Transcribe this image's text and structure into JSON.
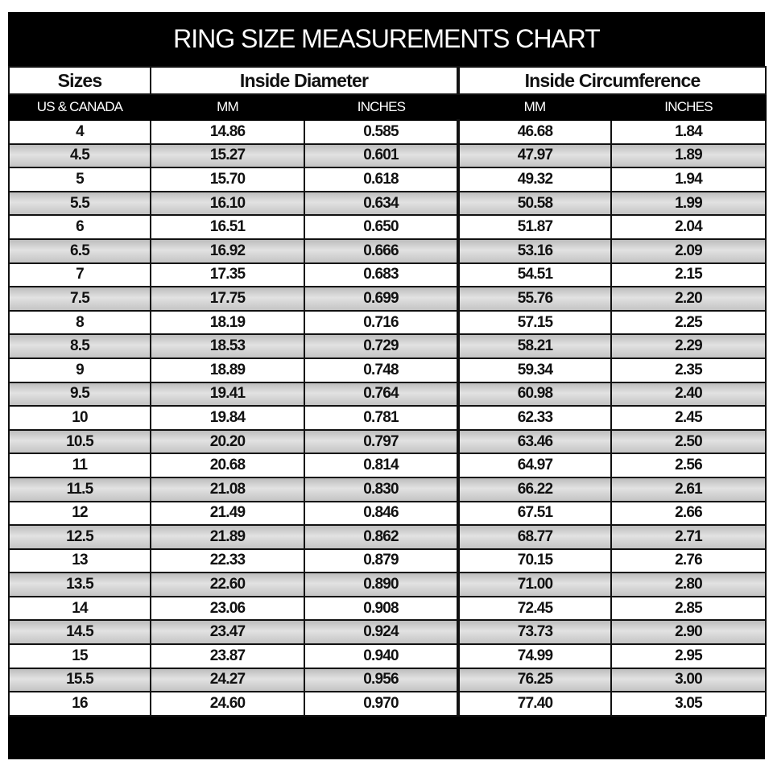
{
  "title": "RING SIZE MEASUREMENTS CHART",
  "groups": {
    "sizes": "Sizes",
    "diameter": "Inside Diameter",
    "circumference": "Inside Circumference"
  },
  "subheaders": {
    "sizes": "US & CANADA",
    "dia_mm": "MM",
    "dia_in": "INCHES",
    "circ_mm": "MM",
    "circ_in": "INCHES"
  },
  "rows": [
    [
      "4",
      "14.86",
      "0.585",
      "46.68",
      "1.84"
    ],
    [
      "4.5",
      "15.27",
      "0.601",
      "47.97",
      "1.89"
    ],
    [
      "5",
      "15.70",
      "0.618",
      "49.32",
      "1.94"
    ],
    [
      "5.5",
      "16.10",
      "0.634",
      "50.58",
      "1.99"
    ],
    [
      "6",
      "16.51",
      "0.650",
      "51.87",
      "2.04"
    ],
    [
      "6.5",
      "16.92",
      "0.666",
      "53.16",
      "2.09"
    ],
    [
      "7",
      "17.35",
      "0.683",
      "54.51",
      "2.15"
    ],
    [
      "7.5",
      "17.75",
      "0.699",
      "55.76",
      "2.20"
    ],
    [
      "8",
      "18.19",
      "0.716",
      "57.15",
      "2.25"
    ],
    [
      "8.5",
      "18.53",
      "0.729",
      "58.21",
      "2.29"
    ],
    [
      "9",
      "18.89",
      "0.748",
      "59.34",
      "2.35"
    ],
    [
      "9.5",
      "19.41",
      "0.764",
      "60.98",
      "2.40"
    ],
    [
      "10",
      "19.84",
      "0.781",
      "62.33",
      "2.45"
    ],
    [
      "10.5",
      "20.20",
      "0.797",
      "63.46",
      "2.50"
    ],
    [
      "11",
      "20.68",
      "0.814",
      "64.97",
      "2.56"
    ],
    [
      "11.5",
      "21.08",
      "0.830",
      "66.22",
      "2.61"
    ],
    [
      "12",
      "21.49",
      "0.846",
      "67.51",
      "2.66"
    ],
    [
      "12.5",
      "21.89",
      "0.862",
      "68.77",
      "2.71"
    ],
    [
      "13",
      "22.33",
      "0.879",
      "70.15",
      "2.76"
    ],
    [
      "13.5",
      "22.60",
      "0.890",
      "71.00",
      "2.80"
    ],
    [
      "14",
      "23.06",
      "0.908",
      "72.45",
      "2.85"
    ],
    [
      "14.5",
      "23.47",
      "0.924",
      "73.73",
      "2.90"
    ],
    [
      "15",
      "23.87",
      "0.940",
      "74.99",
      "2.95"
    ],
    [
      "15.5",
      "24.27",
      "0.956",
      "76.25",
      "3.00"
    ],
    [
      "16",
      "24.60",
      "0.970",
      "77.40",
      "3.05"
    ]
  ]
}
